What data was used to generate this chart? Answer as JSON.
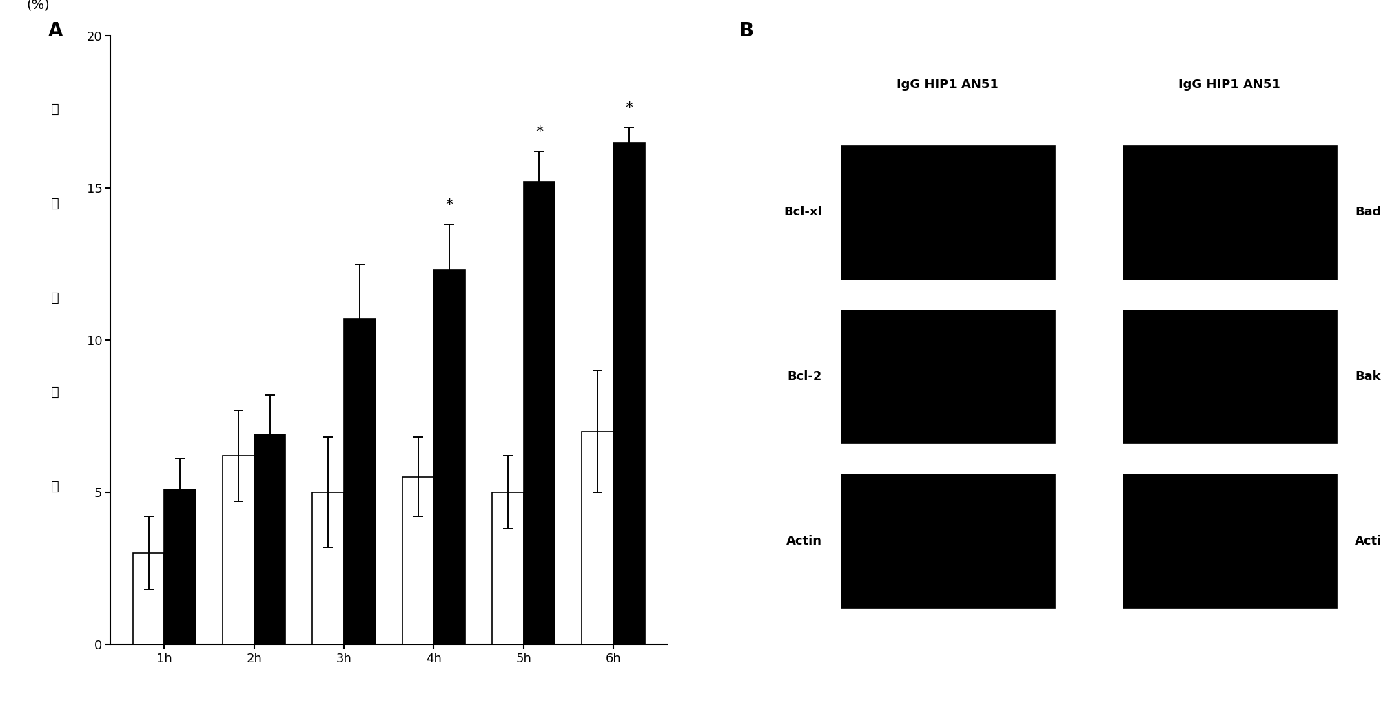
{
  "categories": [
    "1h",
    "2h",
    "3h",
    "4h",
    "5h",
    "6h"
  ],
  "white_bars": [
    3.0,
    6.2,
    5.0,
    5.5,
    5.0,
    7.0
  ],
  "black_bars": [
    5.1,
    6.9,
    10.7,
    12.3,
    15.2,
    16.5
  ],
  "white_errors": [
    1.2,
    1.5,
    1.8,
    1.3,
    1.2,
    2.0
  ],
  "black_errors": [
    1.0,
    1.3,
    1.8,
    1.5,
    1.0,
    0.5
  ],
  "significant_black": [
    false,
    false,
    false,
    true,
    true,
    true
  ],
  "ylim": [
    0,
    20
  ],
  "yticks": [
    0,
    5,
    10,
    15,
    20
  ],
  "ylabel_lines": [
    "(%)",
    "血 小 板 凋 亡"
  ],
  "panel_a_label": "A",
  "panel_b_label": "B",
  "bar_width": 0.35,
  "white_color": "#ffffff",
  "black_color": "#000000",
  "edge_color": "#000000",
  "background_color": "#ffffff",
  "panel_b_headers_left": "IgG HIP1 AN51",
  "panel_b_headers_right": "IgG HIP1 AN51",
  "panel_b_row_labels_left": [
    "Bcl-xl",
    "Bcl-2",
    "Actin"
  ],
  "panel_b_row_labels_right": [
    "Bad",
    "Bak",
    "Actin"
  ],
  "axis_linewidth": 1.5,
  "bar_linewidth": 1.2,
  "fontsize_label": 14,
  "fontsize_tick": 13,
  "fontsize_panel": 20,
  "fontsize_star": 16,
  "fontsize_blot": 13,
  "fontsize_blot_header": 13
}
